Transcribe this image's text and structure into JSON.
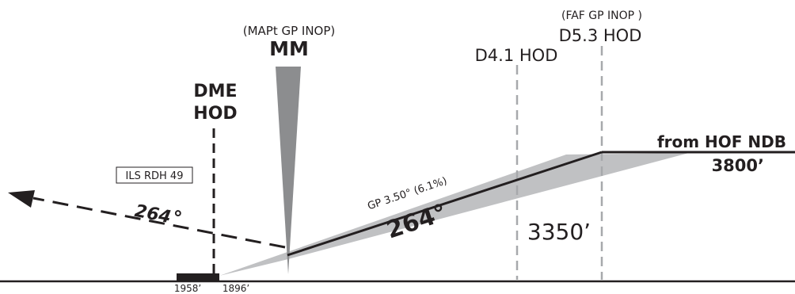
{
  "labels": {
    "mapt_note": "(MAPt GP INOP)",
    "mm": "MM",
    "dme_line1": "DME",
    "dme_line2": "HOD",
    "ils_rdh": "ILS RDH 49",
    "missed_course": "264",
    "degree_symbol": "°",
    "faf_note": "(FAF GP INOP )",
    "d53": "D5.3 HOD",
    "d41": "D4.1 HOD",
    "from_hof": "from HOF NDB",
    "alt_3800": "3800’",
    "gp_text": "GP 3.50° (6.1%)",
    "final_course": "264°",
    "alt_3350": "3350’",
    "thr_left_elev": "1958’",
    "thr_right_elev": "1896’"
  },
  "colors": {
    "ink": "#231f20",
    "gray_wedge": "#c0c1c3",
    "mm_cone": "#8c8d8f",
    "dash_gray": "#a7a9ac"
  }
}
